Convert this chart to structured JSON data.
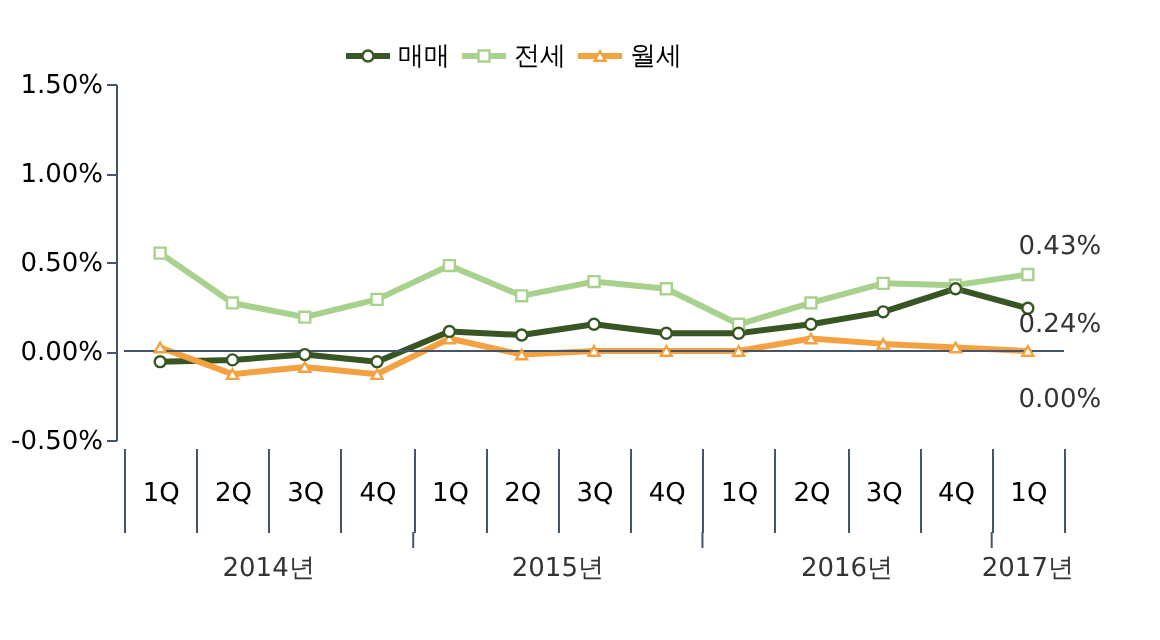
{
  "chart_data": {
    "type": "line",
    "categories": [
      "1Q",
      "2Q",
      "3Q",
      "4Q",
      "1Q",
      "2Q",
      "3Q",
      "4Q",
      "1Q",
      "2Q",
      "3Q",
      "4Q",
      "1Q"
    ],
    "series": [
      {
        "name": "매매",
        "color": "#375623",
        "marker": "circle",
        "values": [
          -0.06,
          -0.05,
          -0.02,
          -0.06,
          0.11,
          0.09,
          0.15,
          0.1,
          0.1,
          0.15,
          0.22,
          0.35,
          0.24
        ],
        "value_labels": [
          null,
          null,
          null,
          null,
          null,
          null,
          null,
          null,
          null,
          null,
          null,
          null,
          "0.24%"
        ]
      },
      {
        "name": "전세",
        "color": "#a9d18e",
        "marker": "square",
        "values": [
          0.55,
          0.27,
          0.19,
          0.29,
          0.48,
          0.31,
          0.39,
          0.35,
          0.15,
          0.27,
          0.38,
          0.37,
          0.43
        ],
        "value_labels": [
          null,
          null,
          null,
          null,
          null,
          null,
          null,
          null,
          null,
          null,
          null,
          null,
          "0.43%"
        ]
      },
      {
        "name": "월세",
        "color": "#f4a142",
        "marker": "triangle",
        "values": [
          0.02,
          -0.13,
          -0.09,
          -0.13,
          0.07,
          -0.02,
          0.0,
          0.0,
          0.0,
          0.07,
          0.04,
          0.02,
          0.0
        ],
        "value_labels": [
          null,
          null,
          null,
          null,
          null,
          null,
          null,
          null,
          null,
          null,
          null,
          null,
          "0.00%"
        ]
      }
    ],
    "ylim": [
      -0.5,
      1.5
    ],
    "yticks": [
      {
        "value": -0.5,
        "label": "-0.50%"
      },
      {
        "value": 0,
        "label": "0.00%"
      },
      {
        "value": 0.5,
        "label": "0.50%"
      },
      {
        "value": 1.0,
        "label": "1.00%"
      },
      {
        "value": 1.5,
        "label": "1.50%"
      }
    ],
    "annotations": [
      "2014년",
      "2015년",
      "2016년",
      "2017년"
    ],
    "ref_lines": [
      {
        "axis": "y",
        "value": 0,
        "color": "#44546a"
      }
    ],
    "legend": "top",
    "grid": false
  }
}
